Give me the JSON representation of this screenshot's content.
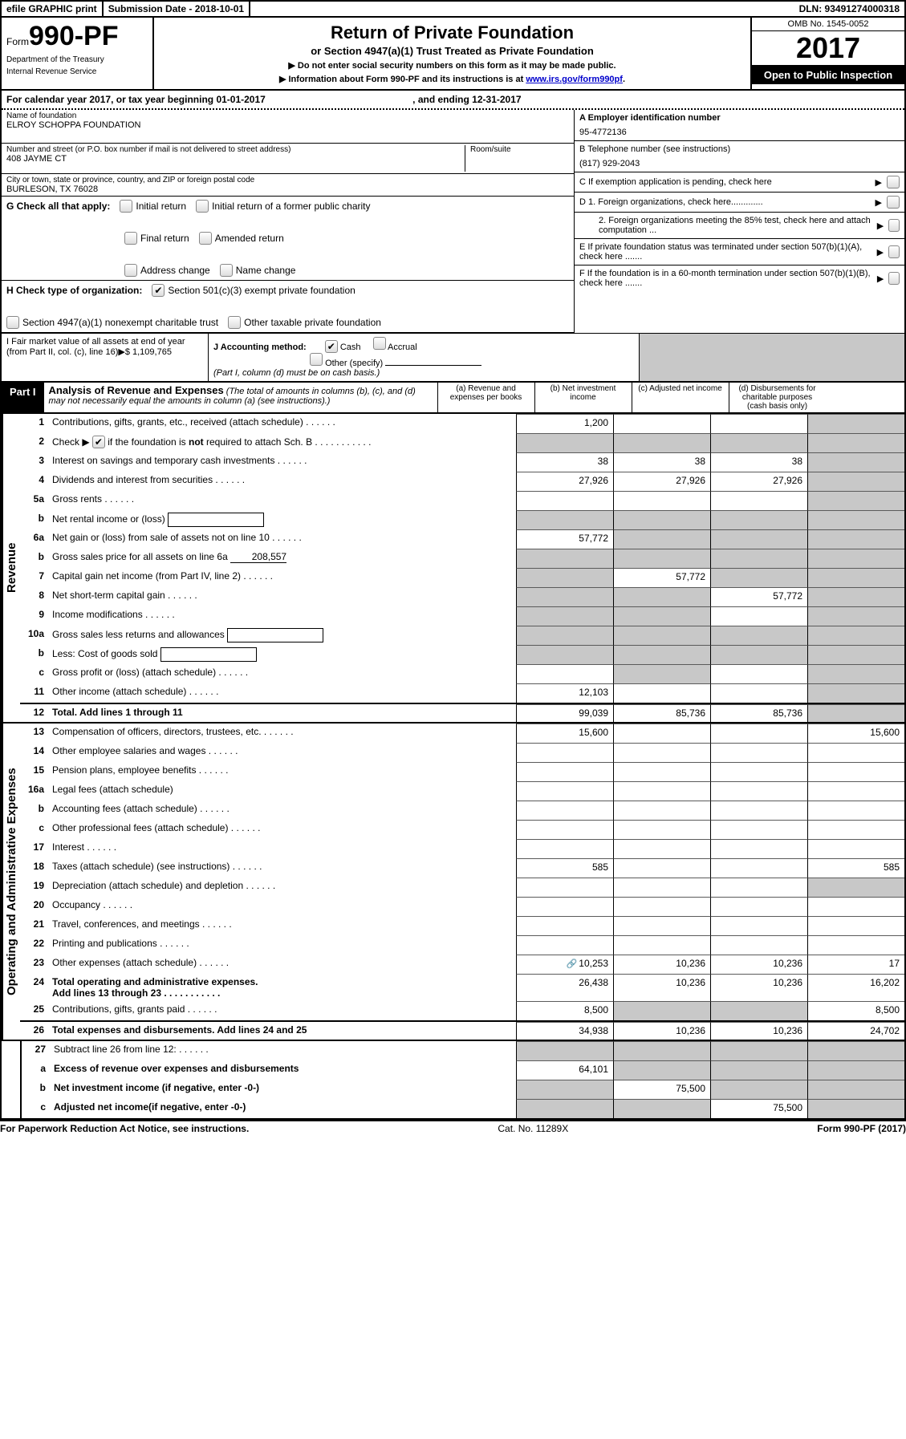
{
  "top": {
    "efile": "efile GRAPHIC print",
    "submission": "Submission Date - 2018-10-01",
    "dln": "DLN: 93491274000318"
  },
  "header": {
    "form_prefix": "Form",
    "form_number": "990-PF",
    "dept1": "Department of the Treasury",
    "dept2": "Internal Revenue Service",
    "title": "Return of Private Foundation",
    "subtitle": "or Section 4947(a)(1) Trust Treated as Private Foundation",
    "note1": "▶ Do not enter social security numbers on this form as it may be made public.",
    "note2_pre": "▶ Information about Form 990-PF and its instructions is at ",
    "note2_link": "www.irs.gov/form990pf",
    "omb": "OMB No. 1545-0052",
    "year": "2017",
    "open_public": "Open to Public Inspection"
  },
  "calendar": "For calendar year 2017, or tax year beginning 01-01-2017",
  "calendar_end": ", and ending 12-31-2017",
  "name_block": {
    "name_label": "Name of foundation",
    "name": "ELROY SCHOPPA FOUNDATION",
    "addr_label": "Number and street (or P.O. box number if mail is not delivered to street address)",
    "addr": "408 JAYME CT",
    "room_label": "Room/suite",
    "city_label": "City or town, state or province, country, and ZIP or foreign postal code",
    "city": "BURLESON, TX  76028"
  },
  "ein_block": {
    "a_label": "A Employer identification number",
    "a_val": "95-4772136",
    "b_label": "B Telephone number (see instructions)",
    "b_val": "(817) 929-2043",
    "c_label": "C If exemption application is pending, check here"
  },
  "G": {
    "label": "G Check all that apply:",
    "items": [
      "Initial return",
      "Initial return of a former public charity",
      "Final return",
      "Amended return",
      "Address change",
      "Name change"
    ]
  },
  "H": {
    "label": "H Check type of organization:",
    "opt1": "Section 501(c)(3) exempt private foundation",
    "opt2": "Section 4947(a)(1) nonexempt charitable trust",
    "opt3": "Other taxable private foundation"
  },
  "D": {
    "d1": "D 1. Foreign organizations, check here.............",
    "d2": "2. Foreign organizations meeting the 85% test, check here and attach computation ...",
    "e": "E  If private foundation status was terminated under section 507(b)(1)(A), check here .......",
    "f": "F  If the foundation is in a 60-month termination under section 507(b)(1)(B), check here ......."
  },
  "I": {
    "label": "I Fair market value of all assets at end of year (from Part II, col. (c), line 16)▶$  1,109,765"
  },
  "J": {
    "label": "J Accounting method:",
    "cash": "Cash",
    "accrual": "Accrual",
    "other": "Other (specify)",
    "note": "(Part I, column (d) must be on cash basis.)"
  },
  "part1": {
    "tag": "Part I",
    "title": "Analysis of Revenue and Expenses",
    "desc": "(The total of amounts in columns (b), (c), and (d) may not necessarily equal the amounts in column (a) (see instructions).)",
    "col_a": "(a)   Revenue and expenses per books",
    "col_b": "(b)   Net investment income",
    "col_c": "(c)   Adjusted net income",
    "col_d": "(d)   Disbursements for charitable purposes (cash basis only)"
  },
  "revenue_label": "Revenue",
  "expenses_label": "Operating and Administrative Expenses",
  "lines": {
    "l1": {
      "n": "1",
      "d": "Contributions, gifts, grants, etc., received (attach schedule)",
      "a": "1,200",
      "shade": [
        "d"
      ]
    },
    "l2": {
      "n": "2",
      "d_pre": "Check ▶",
      "d_post": " if the foundation is not required to attach Sch. B",
      "shade": [
        "a",
        "b",
        "c",
        "d"
      ],
      "checked": true,
      "bold_word": "not"
    },
    "l3": {
      "n": "3",
      "d": "Interest on savings and temporary cash investments",
      "a": "38",
      "b": "38",
      "c": "38",
      "shade": [
        "d"
      ]
    },
    "l4": {
      "n": "4",
      "d": "Dividends and interest from securities",
      "a": "27,926",
      "b": "27,926",
      "c": "27,926",
      "shade": [
        "d"
      ]
    },
    "l5a": {
      "n": "5a",
      "d": "Gross rents",
      "shade": [
        "d"
      ]
    },
    "l5b": {
      "n": "b",
      "d": "Net rental income or (loss)",
      "box": true,
      "shade": [
        "a",
        "b",
        "c",
        "d"
      ]
    },
    "l6a": {
      "n": "6a",
      "d": "Net gain or (loss) from sale of assets not on line 10",
      "a": "57,772",
      "shade": [
        "b",
        "c",
        "d"
      ]
    },
    "l6b": {
      "n": "b",
      "d_pre": "Gross sales price for all assets on line 6a",
      "inline": "208,557",
      "shade": [
        "a",
        "b",
        "c",
        "d"
      ]
    },
    "l7": {
      "n": "7",
      "d": "Capital gain net income (from Part IV, line 2)",
      "b": "57,772",
      "shade": [
        "a",
        "c",
        "d"
      ]
    },
    "l8": {
      "n": "8",
      "d": "Net short-term capital gain",
      "c": "57,772",
      "shade": [
        "a",
        "b",
        "d"
      ]
    },
    "l9": {
      "n": "9",
      "d": "Income modifications",
      "shade": [
        "a",
        "b",
        "d"
      ]
    },
    "l10a": {
      "n": "10a",
      "d": "Gross sales less returns and allowances",
      "box": true,
      "shade": [
        "a",
        "b",
        "c",
        "d"
      ]
    },
    "l10b": {
      "n": "b",
      "d": "Less: Cost of goods sold",
      "box": true,
      "shade": [
        "a",
        "b",
        "c",
        "d"
      ]
    },
    "l10c": {
      "n": "c",
      "d": "Gross profit or (loss) (attach schedule)",
      "shade": [
        "b",
        "d"
      ]
    },
    "l11": {
      "n": "11",
      "d": "Other income (attach schedule)",
      "a": "12,103",
      "shade": [
        "d"
      ]
    },
    "l12": {
      "n": "12",
      "d": "Total. Add lines 1 through 11",
      "a": "99,039",
      "b": "85,736",
      "c": "85,736",
      "bold": true,
      "shade": [
        "d"
      ]
    },
    "l13": {
      "n": "13",
      "d": "Compensation of officers, directors, trustees, etc.",
      "a": "15,600",
      "d_": "15,600"
    },
    "l14": {
      "n": "14",
      "d": "Other employee salaries and wages"
    },
    "l15": {
      "n": "15",
      "d": "Pension plans, employee benefits"
    },
    "l16a": {
      "n": "16a",
      "d": "Legal fees (attach schedule)"
    },
    "l16b": {
      "n": "b",
      "d": "Accounting fees (attach schedule)"
    },
    "l16c": {
      "n": "c",
      "d": "Other professional fees (attach schedule)"
    },
    "l17": {
      "n": "17",
      "d": "Interest"
    },
    "l18": {
      "n": "18",
      "d": "Taxes (attach schedule) (see instructions)",
      "a": "585",
      "d_": "585"
    },
    "l19": {
      "n": "19",
      "d": "Depreciation (attach schedule) and depletion",
      "shade": [
        "d"
      ]
    },
    "l20": {
      "n": "20",
      "d": "Occupancy"
    },
    "l21": {
      "n": "21",
      "d": "Travel, conferences, and meetings"
    },
    "l22": {
      "n": "22",
      "d": "Printing and publications"
    },
    "l23": {
      "n": "23",
      "d": "Other expenses (attach schedule)",
      "a": "10,253",
      "b": "10,236",
      "c": "10,236",
      "d_": "17",
      "icon": true
    },
    "l24": {
      "n": "24",
      "d": "Total operating and administrative expenses.",
      "d2": "Add lines 13 through 23",
      "a": "26,438",
      "b": "10,236",
      "c": "10,236",
      "d_": "16,202",
      "bold": true
    },
    "l25": {
      "n": "25",
      "d": "Contributions, gifts, grants paid",
      "a": "8,500",
      "d_": "8,500",
      "shade": [
        "b",
        "c"
      ]
    },
    "l26": {
      "n": "26",
      "d": "Total expenses and disbursements. Add lines 24 and 25",
      "a": "34,938",
      "b": "10,236",
      "c": "10,236",
      "d_": "24,702",
      "bold": true
    },
    "l27": {
      "n": "27",
      "d": "Subtract line 26 from line 12:",
      "shade": [
        "a",
        "b",
        "c",
        "d"
      ]
    },
    "l27a": {
      "n": "a",
      "d": "Excess of revenue over expenses and disbursements",
      "a": "64,101",
      "bold": true,
      "shade": [
        "b",
        "c",
        "d"
      ]
    },
    "l27b": {
      "n": "b",
      "d": "Net investment income (if negative, enter -0-)",
      "b": "75,500",
      "bold": true,
      "shade": [
        "a",
        "c",
        "d"
      ]
    },
    "l27c": {
      "n": "c",
      "d": "Adjusted net income(if negative, enter -0-)",
      "c": "75,500",
      "bold": true,
      "shade": [
        "a",
        "b",
        "d"
      ]
    }
  },
  "footer": {
    "left": "For Paperwork Reduction Act Notice, see instructions.",
    "mid": "Cat. No. 11289X",
    "right": "Form 990-PF (2017)"
  },
  "colors": {
    "shade": "#c8c8c8",
    "border": "#000000",
    "link": "#0000cc"
  }
}
